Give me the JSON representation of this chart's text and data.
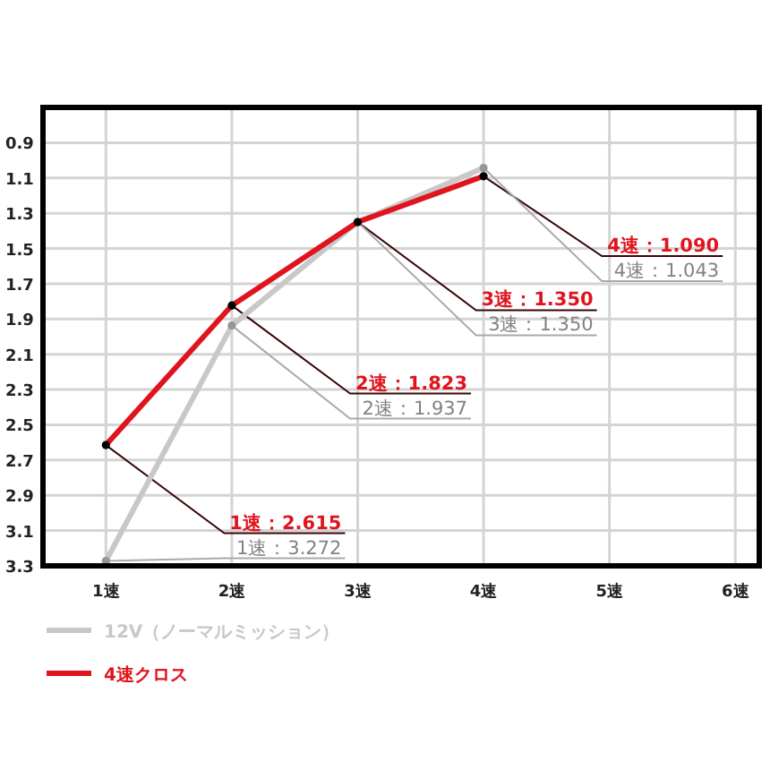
{
  "chart_data": {
    "type": "line",
    "categories": [
      "1速",
      "2速",
      "3速",
      "4速",
      "5速",
      "6速"
    ],
    "series": [
      {
        "name": "12V（ノーマルミッション）",
        "color": "#c8c8c8",
        "values": [
          3.272,
          1.937,
          1.35,
          1.043,
          null,
          null
        ],
        "value_labels": [
          "1速：3.272",
          "2速：1.937",
          "3速：1.350",
          "4速：1.043",
          null,
          null
        ]
      },
      {
        "name": "4速クロス",
        "color": "#e0141e",
        "values": [
          2.615,
          1.823,
          1.35,
          1.09,
          null,
          null
        ],
        "value_labels": [
          "1速：2.615",
          "2速：1.823",
          "3速：1.350",
          "4速：1.090",
          null,
          null
        ]
      }
    ],
    "ylim": [
      3.3,
      0.7
    ],
    "yticks": [
      0.9,
      1.1,
      1.3,
      1.5,
      1.7,
      1.9,
      2.1,
      2.3,
      2.5,
      2.7,
      2.9,
      3.1,
      3.3
    ],
    "grid": true,
    "legend": "bottom left",
    "marker": "circle",
    "line_style": "solid"
  }
}
